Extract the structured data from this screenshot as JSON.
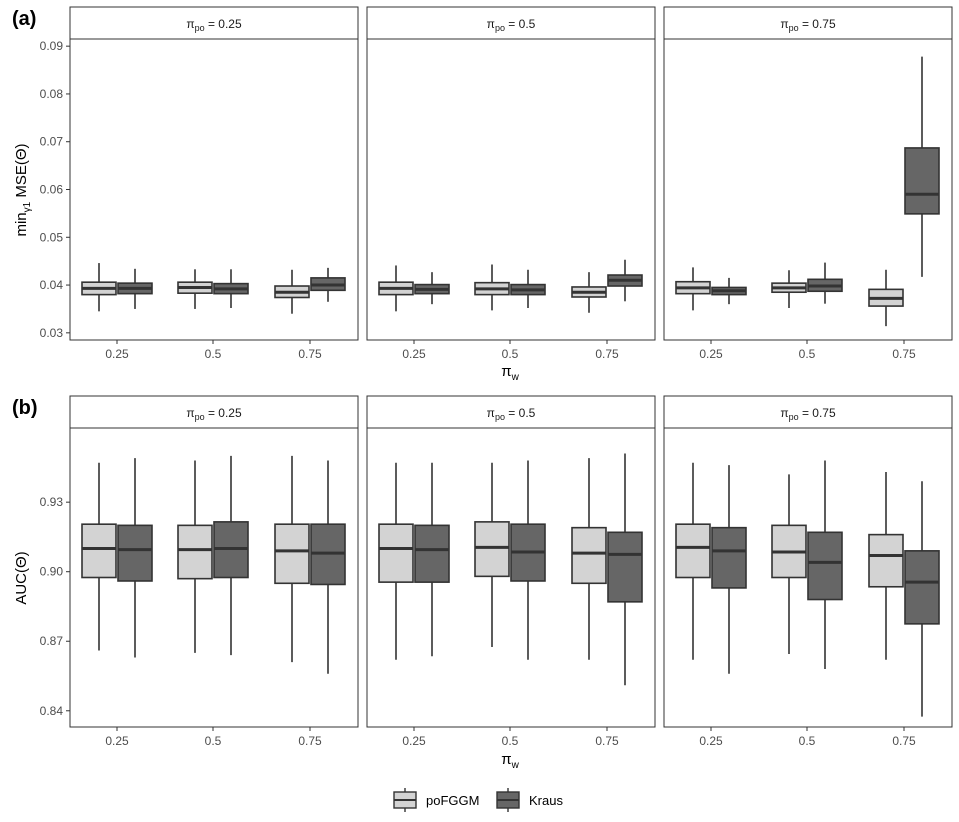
{
  "colors": {
    "poFGGM": "#d3d3d3",
    "Kraus": "#666666",
    "stroke": "#333333"
  },
  "legend": {
    "items": [
      {
        "label": "poFGGM"
      },
      {
        "label": "Kraus"
      }
    ]
  },
  "chart_data": [
    {
      "panel_label": "(a)",
      "type": "boxplot",
      "ylabel": {
        "main": "min",
        "sub": "γ1",
        "rest": " MSE(Θ)"
      },
      "xlabel": {
        "main": "π",
        "sub": "w"
      },
      "ylim": [
        0.0285,
        0.0915
      ],
      "yticks": [
        0.03,
        0.04,
        0.05,
        0.06,
        0.07,
        0.08,
        0.09
      ],
      "ytick_labels": [
        "0.03",
        "0.04",
        "0.05",
        "0.06",
        "0.07",
        "0.08",
        "0.09"
      ],
      "categories": [
        "0.25",
        "0.5",
        "0.75"
      ],
      "facets": [
        {
          "strip": "= 0.25",
          "groups": [
            {
              "cat": "0.25",
              "poFGGM": {
                "whislo": 0.0345,
                "q1": 0.038,
                "med": 0.0393,
                "q3": 0.0406,
                "whishi": 0.0446
              },
              "Kraus": {
                "whislo": 0.035,
                "q1": 0.0382,
                "med": 0.0393,
                "q3": 0.0404,
                "whishi": 0.0434
              }
            },
            {
              "cat": "0.5",
              "poFGGM": {
                "whislo": 0.035,
                "q1": 0.0383,
                "med": 0.0395,
                "q3": 0.0406,
                "whishi": 0.0433
              },
              "Kraus": {
                "whislo": 0.0352,
                "q1": 0.0382,
                "med": 0.0392,
                "q3": 0.0403,
                "whishi": 0.0433
              }
            },
            {
              "cat": "0.75",
              "poFGGM": {
                "whislo": 0.034,
                "q1": 0.0374,
                "med": 0.0385,
                "q3": 0.0398,
                "whishi": 0.0432
              },
              "Kraus": {
                "whislo": 0.0365,
                "q1": 0.0389,
                "med": 0.04,
                "q3": 0.0415,
                "whishi": 0.0436
              }
            }
          ]
        },
        {
          "strip": "= 0.5",
          "groups": [
            {
              "cat": "0.25",
              "poFGGM": {
                "whislo": 0.0345,
                "q1": 0.038,
                "med": 0.0393,
                "q3": 0.0406,
                "whishi": 0.0441
              },
              "Kraus": {
                "whislo": 0.036,
                "q1": 0.0382,
                "med": 0.0391,
                "q3": 0.0401,
                "whishi": 0.0427
              }
            },
            {
              "cat": "0.5",
              "poFGGM": {
                "whislo": 0.0347,
                "q1": 0.038,
                "med": 0.0392,
                "q3": 0.0405,
                "whishi": 0.0443
              },
              "Kraus": {
                "whislo": 0.0352,
                "q1": 0.038,
                "med": 0.039,
                "q3": 0.0401,
                "whishi": 0.0432
              }
            },
            {
              "cat": "0.75",
              "poFGGM": {
                "whislo": 0.0342,
                "q1": 0.0375,
                "med": 0.0385,
                "q3": 0.0396,
                "whishi": 0.0427
              },
              "Kraus": {
                "whislo": 0.0366,
                "q1": 0.0398,
                "med": 0.041,
                "q3": 0.0421,
                "whishi": 0.0453
              }
            }
          ]
        },
        {
          "strip": "= 0.75",
          "groups": [
            {
              "cat": "0.25",
              "poFGGM": {
                "whislo": 0.0347,
                "q1": 0.0382,
                "med": 0.0394,
                "q3": 0.0407,
                "whishi": 0.0437
              },
              "Kraus": {
                "whislo": 0.036,
                "q1": 0.038,
                "med": 0.0388,
                "q3": 0.0395,
                "whishi": 0.0415
              }
            },
            {
              "cat": "0.5",
              "poFGGM": {
                "whislo": 0.0352,
                "q1": 0.0385,
                "med": 0.0394,
                "q3": 0.0404,
                "whishi": 0.0431
              },
              "Kraus": {
                "whislo": 0.0361,
                "q1": 0.0387,
                "med": 0.0398,
                "q3": 0.0412,
                "whishi": 0.0447
              }
            },
            {
              "cat": "0.75",
              "poFGGM": {
                "whislo": 0.0314,
                "q1": 0.0356,
                "med": 0.0372,
                "q3": 0.0391,
                "whishi": 0.0432
              },
              "Kraus": {
                "whislo": 0.0417,
                "q1": 0.0549,
                "med": 0.059,
                "q3": 0.0687,
                "whishi": 0.0878
              }
            }
          ]
        }
      ]
    },
    {
      "panel_label": "(b)",
      "type": "boxplot",
      "ylabel": {
        "main": "AUC(Θ)",
        "sub": "",
        "rest": ""
      },
      "xlabel": {
        "main": "π",
        "sub": "w"
      },
      "ylim": [
        0.833,
        0.962
      ],
      "yticks": [
        0.84,
        0.87,
        0.9,
        0.93
      ],
      "ytick_labels": [
        "0.84",
        "0.87",
        "0.90",
        "0.93"
      ],
      "categories": [
        "0.25",
        "0.5",
        "0.75"
      ],
      "facets": [
        {
          "strip": "= 0.25",
          "groups": [
            {
              "cat": "0.25",
              "poFGGM": {
                "whislo": 0.866,
                "q1": 0.8975,
                "med": 0.91,
                "q3": 0.9205,
                "whishi": 0.947
              },
              "Kraus": {
                "whislo": 0.863,
                "q1": 0.896,
                "med": 0.9095,
                "q3": 0.92,
                "whishi": 0.949
              }
            },
            {
              "cat": "0.5",
              "poFGGM": {
                "whislo": 0.865,
                "q1": 0.897,
                "med": 0.9095,
                "q3": 0.92,
                "whishi": 0.948
              },
              "Kraus": {
                "whislo": 0.864,
                "q1": 0.8975,
                "med": 0.91,
                "q3": 0.9215,
                "whishi": 0.95
              }
            },
            {
              "cat": "0.75",
              "poFGGM": {
                "whislo": 0.861,
                "q1": 0.895,
                "med": 0.909,
                "q3": 0.9205,
                "whishi": 0.95
              },
              "Kraus": {
                "whislo": 0.856,
                "q1": 0.8945,
                "med": 0.908,
                "q3": 0.9205,
                "whishi": 0.948
              }
            }
          ]
        },
        {
          "strip": "= 0.5",
          "groups": [
            {
              "cat": "0.25",
              "poFGGM": {
                "whislo": 0.862,
                "q1": 0.8955,
                "med": 0.91,
                "q3": 0.9205,
                "whishi": 0.947
              },
              "Kraus": {
                "whislo": 0.8635,
                "q1": 0.8955,
                "med": 0.9095,
                "q3": 0.92,
                "whishi": 0.947
              }
            },
            {
              "cat": "0.5",
              "poFGGM": {
                "whislo": 0.8675,
                "q1": 0.898,
                "med": 0.9105,
                "q3": 0.9215,
                "whishi": 0.947
              },
              "Kraus": {
                "whislo": 0.862,
                "q1": 0.896,
                "med": 0.9085,
                "q3": 0.9205,
                "whishi": 0.948
              }
            },
            {
              "cat": "0.75",
              "poFGGM": {
                "whislo": 0.862,
                "q1": 0.895,
                "med": 0.908,
                "q3": 0.919,
                "whishi": 0.949
              },
              "Kraus": {
                "whislo": 0.851,
                "q1": 0.887,
                "med": 0.9075,
                "q3": 0.917,
                "whishi": 0.951
              }
            }
          ]
        },
        {
          "strip": "= 0.75",
          "groups": [
            {
              "cat": "0.25",
              "poFGGM": {
                "whislo": 0.862,
                "q1": 0.8975,
                "med": 0.9105,
                "q3": 0.9205,
                "whishi": 0.947
              },
              "Kraus": {
                "whislo": 0.856,
                "q1": 0.893,
                "med": 0.909,
                "q3": 0.919,
                "whishi": 0.946
              }
            },
            {
              "cat": "0.5",
              "poFGGM": {
                "whislo": 0.8645,
                "q1": 0.8975,
                "med": 0.9085,
                "q3": 0.92,
                "whishi": 0.942
              },
              "Kraus": {
                "whislo": 0.858,
                "q1": 0.888,
                "med": 0.904,
                "q3": 0.917,
                "whishi": 0.948
              }
            },
            {
              "cat": "0.75",
              "poFGGM": {
                "whislo": 0.862,
                "q1": 0.8935,
                "med": 0.907,
                "q3": 0.916,
                "whishi": 0.943
              },
              "Kraus": {
                "whislo": 0.8375,
                "q1": 0.8775,
                "med": 0.8955,
                "q3": 0.909,
                "whishi": 0.939
              }
            }
          ]
        }
      ]
    }
  ]
}
